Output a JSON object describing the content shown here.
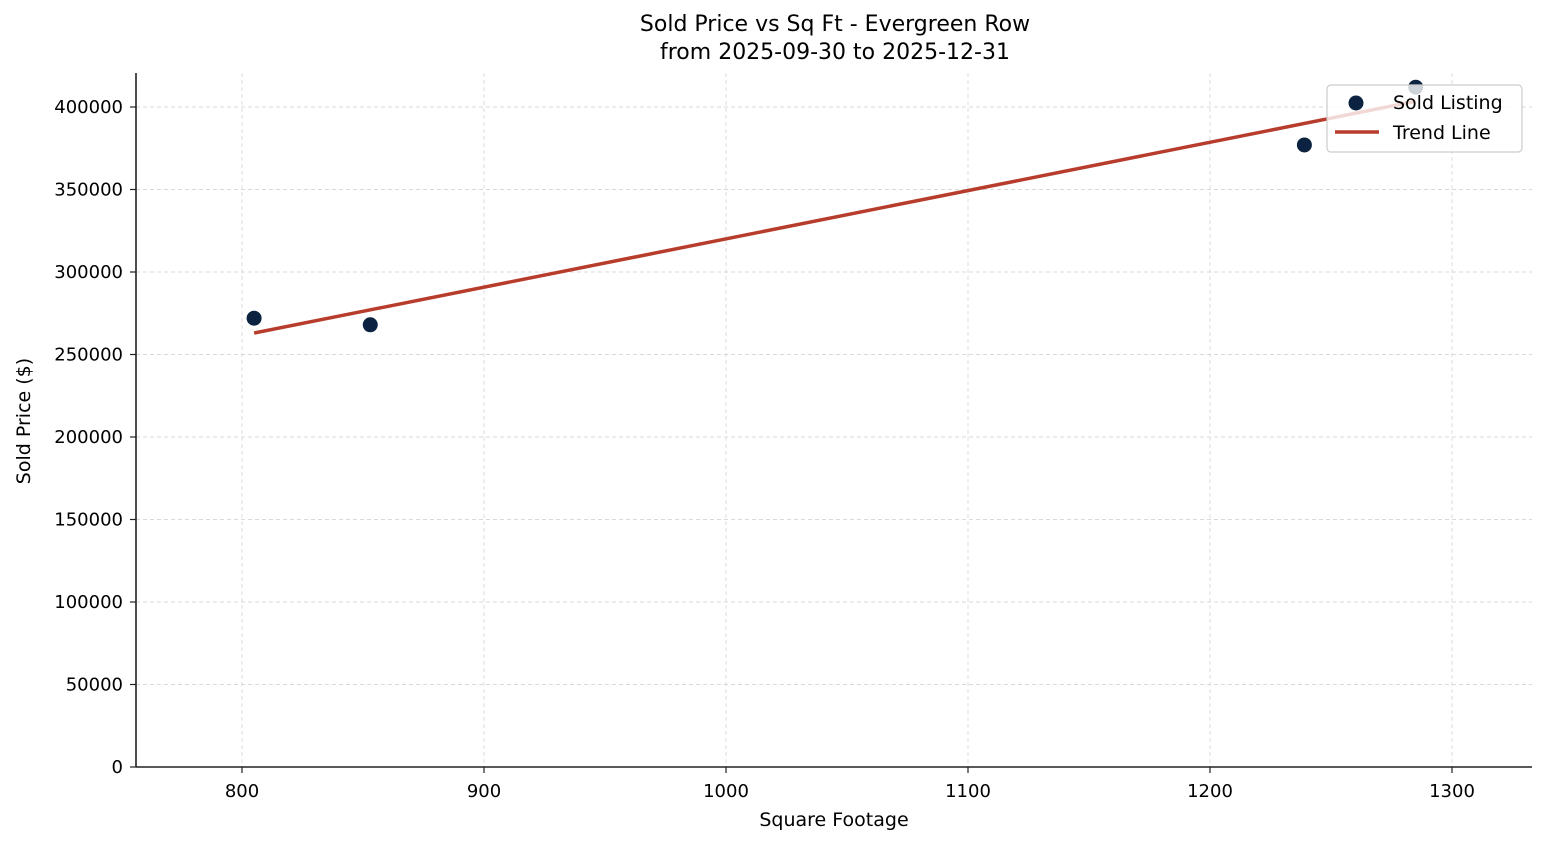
{
  "chart_data": {
    "type": "scatter",
    "title": "Sold Price vs Sq Ft - Evergreen Row",
    "subtitle": "from 2025-09-30 to 2025-12-31",
    "xlabel": "Square Footage",
    "ylabel": "Sold Price ($)",
    "xlim": [
      756,
      1333
    ],
    "ylim": [
      0,
      420000
    ],
    "xticks": [
      800,
      900,
      1000,
      1100,
      1200,
      1300
    ],
    "yticks": [
      0,
      50000,
      100000,
      150000,
      200000,
      250000,
      300000,
      350000,
      400000
    ],
    "grid": true,
    "legend_position": "upper right",
    "series": [
      {
        "name": "Sold Listing",
        "kind": "scatter",
        "color": "#0b2340",
        "x": [
          805,
          853,
          1239,
          1285
        ],
        "y": [
          272000,
          268000,
          377000,
          412000
        ]
      },
      {
        "name": "Trend Line",
        "kind": "line",
        "color": "#b83c2c",
        "x": [
          805,
          1285
        ],
        "y": [
          263000,
          403500
        ]
      }
    ]
  }
}
